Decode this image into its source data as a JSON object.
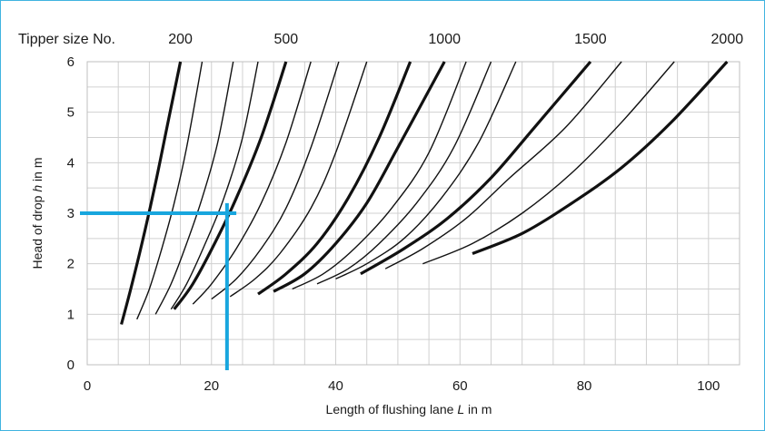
{
  "chart_data": {
    "type": "line",
    "title": "",
    "top_label": "Tipper size No.",
    "xlabel_pre": "Length of flushing lane ",
    "xlabel_var": "L",
    "xlabel_post": " in m",
    "ylabel_pre": "Head of drop ",
    "ylabel_var": "h",
    "ylabel_post": " in m",
    "xlim": [
      0,
      105
    ],
    "ylim": [
      0,
      6
    ],
    "xticks": [
      0,
      20,
      40,
      60,
      80,
      100
    ],
    "yticks": [
      0,
      1,
      2,
      3,
      4,
      5,
      6
    ],
    "grid": true,
    "top_ticks": [
      {
        "label": "200",
        "x": 15
      },
      {
        "label": "500",
        "x": 32
      },
      {
        "label": "1000",
        "x": 57.5
      },
      {
        "label": "1500",
        "x": 81
      },
      {
        "label": "2000",
        "x": 103
      }
    ],
    "series": [
      {
        "x": [
          5.5,
          7,
          9,
          11,
          13,
          15
        ],
        "y": [
          0.8,
          1.5,
          2.5,
          3.6,
          4.8,
          6.0
        ],
        "bold": true
      },
      {
        "x": [
          8,
          10,
          12,
          14,
          16,
          18.5
        ],
        "y": [
          0.9,
          1.5,
          2.3,
          3.2,
          4.3,
          6.0
        ],
        "bold": false
      },
      {
        "x": [
          11,
          13.5,
          16,
          18.5,
          21,
          23.5
        ],
        "y": [
          1.0,
          1.6,
          2.4,
          3.3,
          4.4,
          6.0
        ],
        "bold": false
      },
      {
        "x": [
          13.5,
          16,
          19,
          22,
          25,
          27.5
        ],
        "y": [
          1.1,
          1.6,
          2.4,
          3.3,
          4.5,
          6.0
        ],
        "bold": false
      },
      {
        "x": [
          14,
          17,
          20.5,
          24,
          28,
          32
        ],
        "y": [
          1.1,
          1.6,
          2.4,
          3.3,
          4.5,
          6.0
        ],
        "bold": true
      },
      {
        "x": [
          17,
          20,
          24,
          28,
          32,
          36
        ],
        "y": [
          1.2,
          1.6,
          2.3,
          3.2,
          4.4,
          6.0
        ],
        "bold": false
      },
      {
        "x": [
          20,
          24,
          28,
          32,
          36,
          40.5
        ],
        "y": [
          1.3,
          1.7,
          2.3,
          3.1,
          4.3,
          6.0
        ],
        "bold": false
      },
      {
        "x": [
          23,
          27,
          31,
          36,
          40,
          45
        ],
        "y": [
          1.35,
          1.7,
          2.2,
          3.1,
          4.2,
          6.0
        ],
        "bold": false
      },
      {
        "x": [
          27.5,
          32,
          37,
          42,
          47,
          52
        ],
        "y": [
          1.4,
          1.8,
          2.4,
          3.3,
          4.5,
          6.0
        ],
        "bold": true
      },
      {
        "x": [
          30,
          35,
          40,
          45,
          50,
          57.5
        ],
        "y": [
          1.45,
          1.8,
          2.4,
          3.2,
          4.3,
          6.0
        ],
        "bold": true
      },
      {
        "x": [
          33,
          38,
          43,
          49,
          55,
          61
        ],
        "y": [
          1.5,
          1.8,
          2.3,
          3.1,
          4.2,
          6.0
        ],
        "bold": false
      },
      {
        "x": [
          37,
          42,
          47,
          53,
          59,
          65
        ],
        "y": [
          1.6,
          1.9,
          2.4,
          3.2,
          4.3,
          6.0
        ],
        "bold": false
      },
      {
        "x": [
          40,
          45,
          51,
          57,
          63,
          69
        ],
        "y": [
          1.7,
          2.0,
          2.5,
          3.3,
          4.4,
          6.0
        ],
        "bold": false
      },
      {
        "x": [
          44,
          51,
          58,
          65,
          72,
          81
        ],
        "y": [
          1.8,
          2.3,
          2.9,
          3.7,
          4.7,
          6.0
        ],
        "bold": true
      },
      {
        "x": [
          48,
          54,
          61,
          68,
          77,
          86
        ],
        "y": [
          1.9,
          2.3,
          2.9,
          3.7,
          4.7,
          6.0
        ],
        "bold": false
      },
      {
        "x": [
          54,
          62,
          70,
          78,
          86,
          94.5
        ],
        "y": [
          2.0,
          2.4,
          3.0,
          3.8,
          4.8,
          6.0
        ],
        "bold": false
      },
      {
        "x": [
          62,
          70,
          78,
          86,
          94,
          103
        ],
        "y": [
          2.2,
          2.6,
          3.2,
          3.9,
          4.8,
          6.0
        ],
        "bold": true
      }
    ],
    "annotation": {
      "x": 22.5,
      "y": 3,
      "color": "#18a6de"
    }
  }
}
